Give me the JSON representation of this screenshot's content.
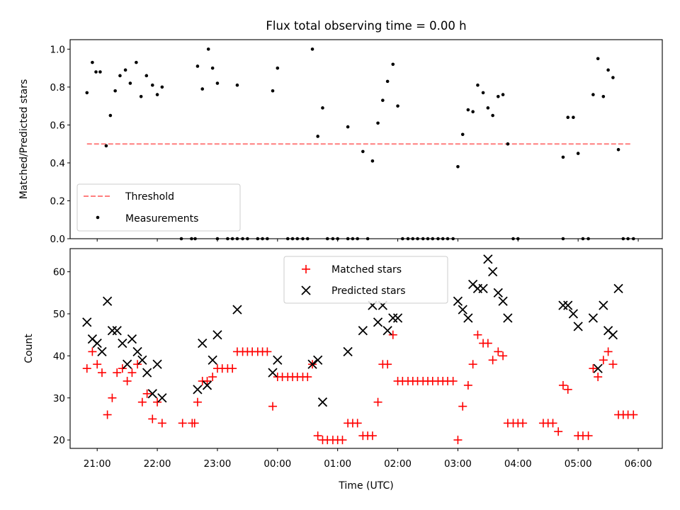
{
  "chart_data": [
    {
      "type": "scatter",
      "title": "Flux total observing time = 0.00 h",
      "xlabel": "",
      "ylabel": "Matched/Predicted stars",
      "ylim": [
        0,
        1.05
      ],
      "yticks": [
        "0.0",
        "0.2",
        "0.4",
        "0.6",
        "0.8",
        "1.0"
      ],
      "xlim_hours": [
        20.55,
        30.4
      ],
      "legend_position": "lower-left",
      "threshold": {
        "name": "Threshold",
        "value": 0.5,
        "x_range": [
          20.83,
          29.9
        ],
        "color": "#ff7f7f"
      },
      "series": [
        {
          "name": "Measurements",
          "color": "#000000",
          "marker": "dot",
          "points": [
            [
              20.83,
              0.77
            ],
            [
              20.92,
              0.93
            ],
            [
              20.98,
              0.88
            ],
            [
              21.05,
              0.88
            ],
            [
              21.15,
              0.49
            ],
            [
              21.22,
              0.65
            ],
            [
              21.3,
              0.78
            ],
            [
              21.38,
              0.86
            ],
            [
              21.47,
              0.89
            ],
            [
              21.55,
              0.82
            ],
            [
              21.65,
              0.93
            ],
            [
              21.73,
              0.75
            ],
            [
              21.82,
              0.86
            ],
            [
              21.92,
              0.81
            ],
            [
              22.0,
              0.76
            ],
            [
              22.08,
              0.8
            ],
            [
              22.4,
              0.0
            ],
            [
              22.57,
              0.0
            ],
            [
              22.63,
              0.0
            ],
            [
              22.67,
              0.91
            ],
            [
              22.75,
              0.79
            ],
            [
              22.85,
              1.0
            ],
            [
              22.92,
              0.9
            ],
            [
              23.0,
              0.82
            ],
            [
              23.0,
              0.0
            ],
            [
              23.17,
              0.0
            ],
            [
              23.25,
              0.0
            ],
            [
              23.33,
              0.81
            ],
            [
              23.33,
              0.0
            ],
            [
              23.42,
              0.0
            ],
            [
              23.5,
              0.0
            ],
            [
              23.67,
              0.0
            ],
            [
              23.75,
              0.0
            ],
            [
              23.83,
              0.0
            ],
            [
              23.92,
              0.78
            ],
            [
              24.0,
              0.9
            ],
            [
              24.17,
              0.0
            ],
            [
              24.25,
              0.0
            ],
            [
              24.33,
              0.0
            ],
            [
              24.42,
              0.0
            ],
            [
              24.5,
              0.0
            ],
            [
              24.58,
              1.0
            ],
            [
              24.67,
              0.54
            ],
            [
              24.75,
              0.69
            ],
            [
              24.83,
              0.0
            ],
            [
              24.92,
              0.0
            ],
            [
              25.0,
              0.0
            ],
            [
              25.17,
              0.59
            ],
            [
              25.17,
              0.0
            ],
            [
              25.25,
              0.0
            ],
            [
              25.33,
              0.0
            ],
            [
              25.42,
              0.46
            ],
            [
              25.5,
              0.0
            ],
            [
              25.58,
              0.41
            ],
            [
              25.67,
              0.61
            ],
            [
              25.75,
              0.73
            ],
            [
              25.83,
              0.83
            ],
            [
              25.92,
              0.92
            ],
            [
              26.0,
              0.7
            ],
            [
              26.08,
              0.0
            ],
            [
              26.17,
              0.0
            ],
            [
              26.25,
              0.0
            ],
            [
              26.33,
              0.0
            ],
            [
              26.42,
              0.0
            ],
            [
              26.5,
              0.0
            ],
            [
              26.58,
              0.0
            ],
            [
              26.67,
              0.0
            ],
            [
              26.75,
              0.0
            ],
            [
              26.83,
              0.0
            ],
            [
              26.92,
              0.0
            ],
            [
              27.0,
              0.38
            ],
            [
              27.08,
              0.55
            ],
            [
              27.17,
              0.68
            ],
            [
              27.25,
              0.67
            ],
            [
              27.33,
              0.81
            ],
            [
              27.42,
              0.77
            ],
            [
              27.5,
              0.69
            ],
            [
              27.58,
              0.65
            ],
            [
              27.67,
              0.75
            ],
            [
              27.75,
              0.76
            ],
            [
              27.83,
              0.5
            ],
            [
              27.92,
              0.0
            ],
            [
              28.0,
              0.0
            ],
            [
              28.75,
              0.0
            ],
            [
              28.75,
              0.43
            ],
            [
              28.83,
              0.64
            ],
            [
              28.92,
              0.64
            ],
            [
              29.0,
              0.45
            ],
            [
              29.08,
              0.0
            ],
            [
              29.17,
              0.0
            ],
            [
              29.25,
              0.76
            ],
            [
              29.33,
              0.95
            ],
            [
              29.42,
              0.75
            ],
            [
              29.5,
              0.89
            ],
            [
              29.58,
              0.85
            ],
            [
              29.67,
              0.47
            ],
            [
              29.75,
              0.0
            ],
            [
              29.83,
              0.0
            ],
            [
              29.92,
              0.0
            ]
          ]
        }
      ]
    },
    {
      "type": "scatter",
      "title": "",
      "xlabel": "Time (UTC)",
      "ylabel": "Count",
      "ylim": [
        18,
        65.5
      ],
      "yticks": [
        "20",
        "30",
        "40",
        "50",
        "60"
      ],
      "xlim_hours": [
        20.55,
        30.4
      ],
      "xticks": [
        "21:00",
        "22:00",
        "23:00",
        "00:00",
        "01:00",
        "02:00",
        "03:00",
        "04:00",
        "05:00",
        "06:00"
      ],
      "legend_position": "upper-center",
      "series": [
        {
          "name": "Matched stars",
          "color": "#ff0000",
          "marker": "plus",
          "points": [
            [
              20.83,
              37
            ],
            [
              20.92,
              41
            ],
            [
              21.0,
              38
            ],
            [
              21.08,
              36
            ],
            [
              21.17,
              26
            ],
            [
              21.25,
              30
            ],
            [
              21.33,
              36
            ],
            [
              21.42,
              37
            ],
            [
              21.5,
              34
            ],
            [
              21.58,
              36
            ],
            [
              21.67,
              38
            ],
            [
              21.75,
              29
            ],
            [
              21.83,
              31
            ],
            [
              21.92,
              25
            ],
            [
              22.0,
              29
            ],
            [
              22.08,
              24
            ],
            [
              22.42,
              24
            ],
            [
              22.58,
              24
            ],
            [
              22.62,
              24
            ],
            [
              22.67,
              29
            ],
            [
              22.75,
              34
            ],
            [
              22.83,
              34
            ],
            [
              22.92,
              35
            ],
            [
              23.0,
              37
            ],
            [
              23.08,
              37
            ],
            [
              23.17,
              37
            ],
            [
              23.25,
              37
            ],
            [
              23.33,
              41
            ],
            [
              23.42,
              41
            ],
            [
              23.5,
              41
            ],
            [
              23.58,
              41
            ],
            [
              23.67,
              41
            ],
            [
              23.75,
              41
            ],
            [
              23.83,
              41
            ],
            [
              23.92,
              28
            ],
            [
              24.0,
              35
            ],
            [
              24.08,
              35
            ],
            [
              24.17,
              35
            ],
            [
              24.25,
              35
            ],
            [
              24.33,
              35
            ],
            [
              24.42,
              35
            ],
            [
              24.5,
              35
            ],
            [
              24.58,
              38
            ],
            [
              24.67,
              21
            ],
            [
              24.75,
              20
            ],
            [
              24.83,
              20
            ],
            [
              24.92,
              20
            ],
            [
              25.0,
              20
            ],
            [
              25.08,
              20
            ],
            [
              25.17,
              24
            ],
            [
              25.25,
              24
            ],
            [
              25.33,
              24
            ],
            [
              25.42,
              21
            ],
            [
              25.5,
              21
            ],
            [
              25.58,
              21
            ],
            [
              25.67,
              29
            ],
            [
              25.75,
              38
            ],
            [
              25.83,
              38
            ],
            [
              25.92,
              45
            ],
            [
              26.0,
              34
            ],
            [
              26.08,
              34
            ],
            [
              26.17,
              34
            ],
            [
              26.25,
              34
            ],
            [
              26.33,
              34
            ],
            [
              26.42,
              34
            ],
            [
              26.5,
              34
            ],
            [
              26.58,
              34
            ],
            [
              26.67,
              34
            ],
            [
              26.75,
              34
            ],
            [
              26.83,
              34
            ],
            [
              26.92,
              34
            ],
            [
              27.0,
              20
            ],
            [
              27.08,
              28
            ],
            [
              27.17,
              33
            ],
            [
              27.25,
              38
            ],
            [
              27.33,
              45
            ],
            [
              27.42,
              43
            ],
            [
              27.5,
              43
            ],
            [
              27.58,
              39
            ],
            [
              27.67,
              41
            ],
            [
              27.75,
              40
            ],
            [
              27.83,
              24
            ],
            [
              27.92,
              24
            ],
            [
              28.0,
              24
            ],
            [
              28.08,
              24
            ],
            [
              28.42,
              24
            ],
            [
              28.5,
              24
            ],
            [
              28.58,
              24
            ],
            [
              28.67,
              22
            ],
            [
              28.75,
              33
            ],
            [
              28.83,
              32
            ],
            [
              29.0,
              21
            ],
            [
              29.08,
              21
            ],
            [
              29.17,
              21
            ],
            [
              29.25,
              37
            ],
            [
              29.33,
              35
            ],
            [
              29.42,
              39
            ],
            [
              29.5,
              41
            ],
            [
              29.58,
              38
            ],
            [
              29.67,
              26
            ],
            [
              29.75,
              26
            ],
            [
              29.83,
              26
            ],
            [
              29.92,
              26
            ]
          ]
        },
        {
          "name": "Predicted stars",
          "color": "#000000",
          "marker": "x",
          "points": [
            [
              20.83,
              48
            ],
            [
              20.92,
              44
            ],
            [
              21.0,
              43
            ],
            [
              21.08,
              41
            ],
            [
              21.17,
              53
            ],
            [
              21.25,
              46
            ],
            [
              21.33,
              46
            ],
            [
              21.42,
              43
            ],
            [
              21.5,
              38
            ],
            [
              21.58,
              44
            ],
            [
              21.67,
              41
            ],
            [
              21.75,
              39
            ],
            [
              21.83,
              36
            ],
            [
              21.92,
              31
            ],
            [
              22.0,
              38
            ],
            [
              22.08,
              30
            ],
            [
              22.67,
              32
            ],
            [
              22.75,
              43
            ],
            [
              22.83,
              33
            ],
            [
              22.92,
              39
            ],
            [
              23.0,
              45
            ],
            [
              23.33,
              51
            ],
            [
              23.92,
              36
            ],
            [
              24.0,
              39
            ],
            [
              24.58,
              38
            ],
            [
              24.67,
              39
            ],
            [
              24.75,
              29
            ],
            [
              25.17,
              41
            ],
            [
              25.42,
              46
            ],
            [
              25.58,
              52
            ],
            [
              25.67,
              48
            ],
            [
              25.75,
              52
            ],
            [
              25.83,
              46
            ],
            [
              25.92,
              49
            ],
            [
              26.0,
              49
            ],
            [
              27.0,
              53
            ],
            [
              27.08,
              51
            ],
            [
              27.17,
              49
            ],
            [
              27.25,
              57
            ],
            [
              27.33,
              56
            ],
            [
              27.42,
              56
            ],
            [
              27.5,
              63
            ],
            [
              27.58,
              60
            ],
            [
              27.67,
              55
            ],
            [
              27.75,
              53
            ],
            [
              27.83,
              49
            ],
            [
              28.75,
              52
            ],
            [
              28.83,
              52
            ],
            [
              28.92,
              50
            ],
            [
              29.0,
              47
            ],
            [
              29.25,
              49
            ],
            [
              29.33,
              37
            ],
            [
              29.42,
              52
            ],
            [
              29.5,
              46
            ],
            [
              29.58,
              45
            ],
            [
              29.67,
              56
            ]
          ]
        }
      ]
    }
  ]
}
